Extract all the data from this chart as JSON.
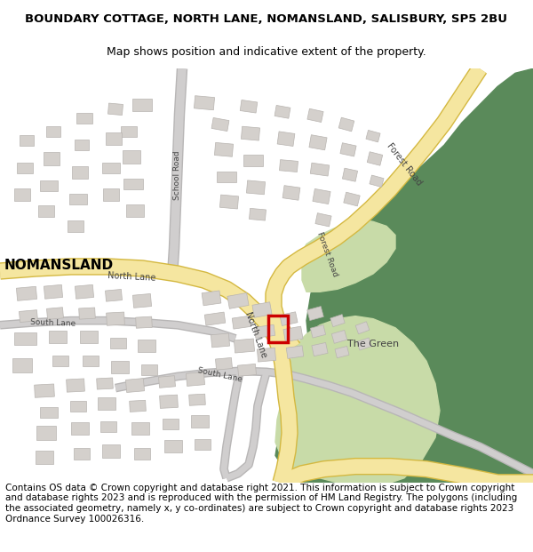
{
  "title_line1": "BOUNDARY COTTAGE, NORTH LANE, NOMANSLAND, SALISBURY, SP5 2BU",
  "title_line2": "Map shows position and indicative extent of the property.",
  "copyright_text": "Contains OS data © Crown copyright and database right 2021. This information is subject to Crown copyright and database rights 2023 and is reproduced with the permission of HM Land Registry. The polygons (including the associated geometry, namely x, y co-ordinates) are subject to Crown copyright and database rights 2023 Ordnance Survey 100026316.",
  "title_fontsize": 9.5,
  "subtitle_fontsize": 9,
  "copyright_fontsize": 7.5,
  "bg_color": "#ffffff",
  "map_bg": "#f8f8f8",
  "green_dark": "#5a8a5a",
  "green_light": "#c8dba8",
  "road_yellow": "#f5e6a0",
  "road_yellow_edge": "#d4b840",
  "road_gray": "#d0cece",
  "road_gray_edge": "#b8b6b6",
  "building_color": "#d4d0cc",
  "building_outline": "#b8b4b0",
  "text_color": "#444444",
  "red_box_color": "#cc0000",
  "nomansland_fontsize": 11,
  "road_label_fontsize": 7
}
